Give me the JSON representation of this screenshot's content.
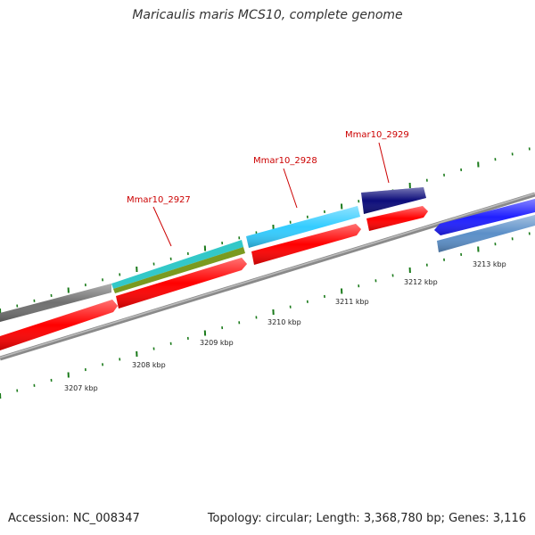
{
  "title": "Maricaulis maris MCS10, complete genome",
  "footer": {
    "accession_label": "Accession:",
    "accession": "NC_008347",
    "topology_label": "Topology:",
    "topology": "circular",
    "length_label": "Length:",
    "length": "3,368,780 bp",
    "genes_label": "Genes:",
    "genes": "3,116"
  },
  "ruler": {
    "unit": "kbp",
    "labels": [
      "3207 kbp",
      "3208 kbp",
      "3209 kbp",
      "3210 kbp",
      "3211 kbp",
      "3212 kbp",
      "3213 kbp"
    ]
  },
  "gene_labels": [
    "Mmar10_2927",
    "Mmar10_2928",
    "Mmar10_2929"
  ],
  "colors": {
    "tick": "#1a7a1a",
    "backbone": "#8a8a8a",
    "label": "#cc0000",
    "cds": "#ff0000",
    "cyan": "#33ccff",
    "teal": "#33c8c8",
    "olive": "#7a9a20",
    "navy": "#0c0c7a",
    "blue": "#1f1fff",
    "steel": "#5b8fc8",
    "gray": "#707070"
  }
}
